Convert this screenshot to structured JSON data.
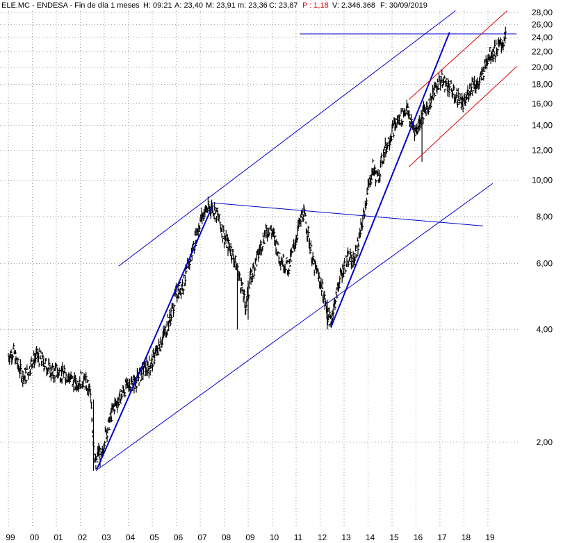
{
  "header": {
    "symbol": "ELE.MC - ENDESA - Fin de día 1 meses",
    "h": "H: 09:21",
    "a": "A: 23,40",
    "m": "M: 23,91",
    "mn": "m: 23,36",
    "c": "C: 23,87",
    "p": "P : 1,18",
    "v": "V: 2.346.368",
    "f": "F: 30/09/2019",
    "p_color": "#e00000"
  },
  "chart_data": {
    "type": "ohlc",
    "title": "",
    "xlabel": "",
    "ylabel": "",
    "y_scale": "log",
    "ylim": [
      1.55,
      28.3
    ],
    "xlim": [
      1999.0,
      2020.2
    ],
    "x_tick_labels": [
      "99",
      "00",
      "01",
      "02",
      "03",
      "04",
      "05",
      "06",
      "07",
      "08",
      "09",
      "10",
      "11",
      "12",
      "13",
      "14",
      "15",
      "16",
      "17",
      "18",
      "19"
    ],
    "y_tick_labels": [
      "2,00",
      "4,00",
      "6,00",
      "8,00",
      "10,00",
      "12,00",
      "14,00",
      "16,00",
      "18,00",
      "20,00",
      "22,00",
      "24,00",
      "26,00",
      "28,00"
    ],
    "grid": true,
    "colors": {
      "price": "#000000",
      "trendlines": "#0000cc",
      "channel": "#dd0000"
    },
    "price_path": [
      [
        1999.0,
        3.4
      ],
      [
        1999.2,
        3.5
      ],
      [
        1999.4,
        3.2
      ],
      [
        1999.6,
        3.0
      ],
      [
        1999.8,
        3.05
      ],
      [
        2000.0,
        3.3
      ],
      [
        2000.2,
        3.4
      ],
      [
        2000.4,
        3.3
      ],
      [
        2000.6,
        3.2
      ],
      [
        2000.8,
        3.05
      ],
      [
        2001.0,
        3.1
      ],
      [
        2001.2,
        3.05
      ],
      [
        2001.5,
        3.0
      ],
      [
        2001.8,
        2.85
      ],
      [
        2002.0,
        2.95
      ],
      [
        2002.2,
        2.9
      ],
      [
        2002.4,
        2.75
      ],
      [
        2002.5,
        2.2
      ],
      [
        2002.6,
        1.85
      ],
      [
        2002.65,
        1.7
      ],
      [
        2002.75,
        1.9
      ],
      [
        2002.9,
        1.8
      ],
      [
        2003.0,
        2.05
      ],
      [
        2003.2,
        2.25
      ],
      [
        2003.4,
        2.5
      ],
      [
        2003.6,
        2.6
      ],
      [
        2003.8,
        2.75
      ],
      [
        2004.0,
        2.85
      ],
      [
        2004.3,
        2.9
      ],
      [
        2004.6,
        3.1
      ],
      [
        2004.9,
        3.2
      ],
      [
        2005.2,
        3.5
      ],
      [
        2005.5,
        3.9
      ],
      [
        2005.8,
        4.4
      ],
      [
        2006.0,
        5.0
      ],
      [
        2006.3,
        5.3
      ],
      [
        2006.6,
        6.2
      ],
      [
        2006.8,
        7.0
      ],
      [
        2007.0,
        7.8
      ],
      [
        2007.2,
        8.3
      ],
      [
        2007.5,
        8.5
      ],
      [
        2007.7,
        8.1
      ],
      [
        2007.9,
        7.4
      ],
      [
        2008.1,
        6.8
      ],
      [
        2008.3,
        6.5
      ],
      [
        2008.5,
        5.9
      ],
      [
        2008.7,
        5.3
      ],
      [
        2008.9,
        4.6
      ],
      [
        2009.1,
        5.5
      ],
      [
        2009.3,
        6.0
      ],
      [
        2009.5,
        6.6
      ],
      [
        2009.7,
        7.2
      ],
      [
        2009.9,
        7.5
      ],
      [
        2010.1,
        7.0
      ],
      [
        2010.3,
        6.3
      ],
      [
        2010.5,
        6.0
      ],
      [
        2010.7,
        5.9
      ],
      [
        2010.9,
        6.6
      ],
      [
        2011.1,
        7.5
      ],
      [
        2011.3,
        8.2
      ],
      [
        2011.5,
        7.2
      ],
      [
        2011.7,
        6.0
      ],
      [
        2011.9,
        5.6
      ],
      [
        2012.1,
        5.1
      ],
      [
        2012.3,
        4.4
      ],
      [
        2012.45,
        4.2
      ],
      [
        2012.6,
        4.7
      ],
      [
        2012.8,
        5.4
      ],
      [
        2013.0,
        5.9
      ],
      [
        2013.2,
        6.2
      ],
      [
        2013.4,
        6.1
      ],
      [
        2013.6,
        6.8
      ],
      [
        2013.8,
        8.0
      ],
      [
        2014.0,
        9.5
      ],
      [
        2014.2,
        10.8
      ],
      [
        2014.4,
        10.0
      ],
      [
        2014.6,
        11.5
      ],
      [
        2014.8,
        12.5
      ],
      [
        2015.0,
        13.5
      ],
      [
        2015.2,
        14.3
      ],
      [
        2015.4,
        14.8
      ],
      [
        2015.6,
        15.6
      ],
      [
        2015.8,
        14.2
      ],
      [
        2016.0,
        13.5
      ],
      [
        2016.2,
        14.6
      ],
      [
        2016.4,
        15.5
      ],
      [
        2016.6,
        16.2
      ],
      [
        2016.8,
        17.5
      ],
      [
        2017.0,
        18.5
      ],
      [
        2017.2,
        18.2
      ],
      [
        2017.4,
        17.8
      ],
      [
        2017.6,
        16.8
      ],
      [
        2017.8,
        16.5
      ],
      [
        2018.0,
        15.8
      ],
      [
        2018.2,
        17.3
      ],
      [
        2018.4,
        18.3
      ],
      [
        2018.6,
        17.8
      ],
      [
        2018.8,
        19.5
      ],
      [
        2019.0,
        21.5
      ],
      [
        2019.2,
        22.0
      ],
      [
        2019.4,
        22.5
      ],
      [
        2019.6,
        23.3
      ],
      [
        2019.75,
        23.87
      ]
    ],
    "spikes": [
      {
        "x": 2008.55,
        "low": 4.0,
        "high": 5.7
      },
      {
        "x": 2009.0,
        "low": 4.25,
        "high": 5.4
      },
      {
        "x": 2012.3,
        "low": 4.0,
        "high": 4.8
      },
      {
        "x": 2016.25,
        "low": 11.2,
        "high": 14.5
      },
      {
        "x": 2002.55,
        "low": 1.68,
        "high": 2.6
      }
    ],
    "trendlines": [
      {
        "color": "#0000cc",
        "width": 1,
        "points": [
          [
            2002.65,
            1.68
          ],
          [
            2019.2,
            9.8
          ]
        ]
      },
      {
        "color": "#0000cc",
        "width": 1,
        "points": [
          [
            2003.6,
            5.9
          ],
          [
            2017.65,
            28.3
          ]
        ]
      },
      {
        "color": "#0000cc",
        "width": 2,
        "points": [
          [
            2002.7,
            1.7
          ],
          [
            2007.5,
            8.5
          ]
        ]
      },
      {
        "color": "#0000cc",
        "width": 2,
        "points": [
          [
            2012.45,
            4.05
          ],
          [
            2017.4,
            24.8
          ]
        ]
      },
      {
        "color": "#0000cc",
        "width": 1,
        "points": [
          [
            2007.5,
            8.7
          ],
          [
            2018.8,
            7.55
          ]
        ]
      },
      {
        "color": "#0000cc",
        "width": 1,
        "points": [
          [
            2011.15,
            24.55
          ],
          [
            2020.2,
            24.55
          ]
        ]
      },
      {
        "color": "#dd0000",
        "width": 1,
        "points": [
          [
            2015.7,
            16.4
          ],
          [
            2019.8,
            28.3
          ]
        ]
      },
      {
        "color": "#dd0000",
        "width": 1,
        "points": [
          [
            2015.7,
            10.85
          ],
          [
            2020.2,
            20.1
          ]
        ]
      }
    ]
  }
}
